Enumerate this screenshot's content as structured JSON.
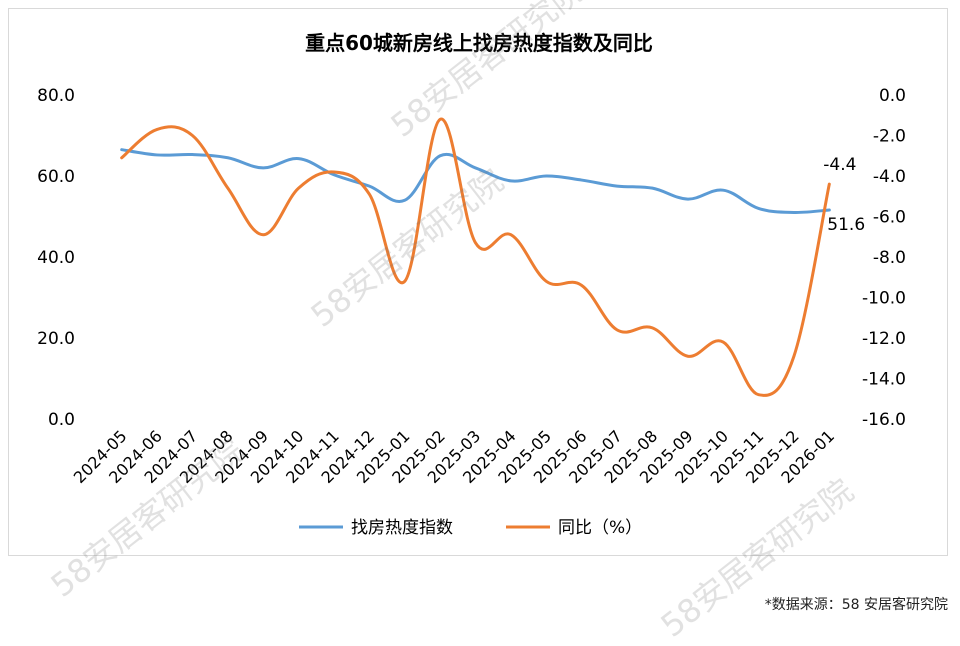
{
  "chart_data": {
    "type": "line",
    "title": "重点60城新房线上找房热度指数及同比",
    "categories": [
      "2024-05",
      "2024-06",
      "2024-07",
      "2024-08",
      "2024-09",
      "2024-10",
      "2024-11",
      "2024-12",
      "2025-01",
      "2025-02",
      "2025-03",
      "2025-04",
      "2025-05",
      "2025-06",
      "2025-07",
      "2025-08",
      "2025-09",
      "2025-10",
      "2025-11",
      "2025-12",
      "2026-01"
    ],
    "y_left": {
      "ylim": [
        0,
        80
      ],
      "ticks": [
        "0.0",
        "20.0",
        "40.0",
        "60.0",
        "80.0"
      ]
    },
    "y_right": {
      "ylim": [
        -16,
        0
      ],
      "ticks": [
        "-16.0",
        "-14.0",
        "-12.0",
        "-10.0",
        "-8.0",
        "-6.0",
        "-4.0",
        "-2.0",
        "0.0"
      ]
    },
    "series": [
      {
        "name": "找房热度指数",
        "axis": "left",
        "color": "#5B9BD5",
        "values": [
          66.5,
          65.2,
          65.3,
          64.5,
          62.0,
          64.3,
          60.3,
          57.5,
          54.0,
          65.0,
          62.0,
          58.8,
          60.0,
          59.0,
          57.5,
          57.0,
          54.3,
          56.5,
          52.0,
          51.0,
          51.6
        ]
      },
      {
        "name": "同比（%）",
        "axis": "right",
        "color": "#ED7D31",
        "values": [
          -3.1,
          -1.7,
          -2.0,
          -4.6,
          -6.9,
          -4.6,
          -3.8,
          -4.9,
          -9.2,
          -1.2,
          -7.3,
          -6.9,
          -9.2,
          -9.4,
          -11.6,
          -11.5,
          -12.9,
          -12.2,
          -14.8,
          -12.9,
          -4.4
        ]
      }
    ],
    "data_labels": {
      "last_index": "51.6",
      "last_yoy": "-4.4"
    },
    "legend": "bottom"
  },
  "watermark": {
    "text": "58安居客研究院"
  },
  "source_note": "*数据来源：58 安居客研究院"
}
